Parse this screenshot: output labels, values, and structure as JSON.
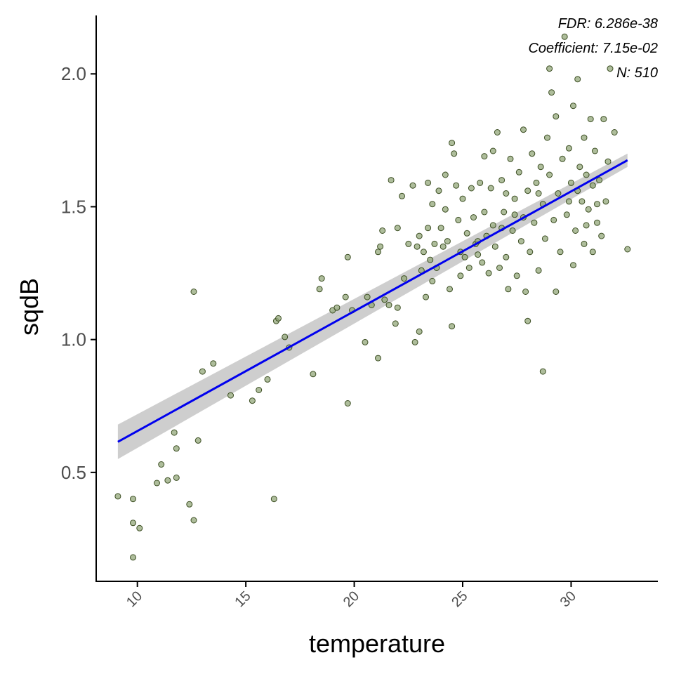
{
  "chart_data": {
    "type": "scatter",
    "title": "",
    "xlabel": "temperature",
    "ylabel": "sqdB",
    "xlim": [
      8.1,
      34.0
    ],
    "ylim": [
      0.09,
      2.22
    ],
    "xticks": [
      10,
      15,
      20,
      25,
      30
    ],
    "xtick_labels": [
      "10",
      "15",
      "20",
      "25",
      "30"
    ],
    "yticks": [
      0.5,
      1.0,
      1.5,
      2.0
    ],
    "ytick_labels": [
      "0.5",
      "1.0",
      "1.5",
      "2.0"
    ],
    "grid": false,
    "legend": "none",
    "annotations": [
      "FDR: 6.286e-38",
      "Coefficient: 7.15e-02",
      "N: 510"
    ],
    "colors": {
      "point_fill": "#93a77a",
      "point_stroke": "#3d4f24",
      "fit_line": "#0000ee",
      "confidence_band": "#bdbdbd",
      "axis": "#000000"
    },
    "fit": {
      "method": "linear",
      "x": [
        9.1,
        32.6
      ],
      "y": [
        0.615,
        1.675
      ],
      "ci_lower": [
        0.55,
        1.65
      ],
      "ci_upper": [
        0.68,
        1.7
      ]
    },
    "point_count_N": 510,
    "points": [
      [
        9.1,
        0.41
      ],
      [
        9.8,
        0.4
      ],
      [
        9.8,
        0.31
      ],
      [
        9.8,
        0.18
      ],
      [
        10.1,
        0.29
      ],
      [
        10.9,
        0.46
      ],
      [
        11.1,
        0.53
      ],
      [
        11.4,
        0.47
      ],
      [
        11.7,
        0.65
      ],
      [
        11.8,
        0.59
      ],
      [
        11.8,
        0.48
      ],
      [
        12.4,
        0.38
      ],
      [
        12.6,
        0.32
      ],
      [
        12.6,
        1.18
      ],
      [
        12.8,
        0.62
      ],
      [
        13.0,
        0.88
      ],
      [
        13.5,
        0.91
      ],
      [
        14.3,
        0.79
      ],
      [
        15.3,
        0.77
      ],
      [
        15.6,
        0.81
      ],
      [
        16.0,
        0.85
      ],
      [
        16.3,
        0.4
      ],
      [
        16.4,
        1.07
      ],
      [
        16.5,
        1.08
      ],
      [
        16.8,
        1.01
      ],
      [
        17.0,
        0.97
      ],
      [
        18.1,
        0.87
      ],
      [
        18.4,
        1.19
      ],
      [
        18.5,
        1.23
      ],
      [
        19.0,
        1.11
      ],
      [
        19.2,
        1.12
      ],
      [
        19.6,
        1.16
      ],
      [
        19.7,
        1.31
      ],
      [
        19.7,
        0.76
      ],
      [
        19.9,
        1.11
      ],
      [
        20.5,
        0.99
      ],
      [
        20.6,
        1.16
      ],
      [
        20.8,
        1.13
      ],
      [
        21.1,
        1.33
      ],
      [
        21.1,
        0.93
      ],
      [
        21.2,
        1.35
      ],
      [
        21.3,
        1.41
      ],
      [
        21.4,
        1.15
      ],
      [
        21.6,
        1.13
      ],
      [
        21.7,
        1.6
      ],
      [
        21.9,
        1.06
      ],
      [
        22.0,
        1.12
      ],
      [
        22.0,
        1.42
      ],
      [
        22.2,
        1.54
      ],
      [
        22.5,
        1.36
      ],
      [
        22.7,
        1.58
      ],
      [
        22.8,
        0.99
      ],
      [
        22.9,
        1.35
      ],
      [
        23.0,
        1.03
      ],
      [
        23.0,
        1.39
      ],
      [
        23.1,
        1.26
      ],
      [
        23.2,
        1.33
      ],
      [
        23.3,
        1.16
      ],
      [
        23.4,
        1.59
      ],
      [
        23.4,
        1.42
      ],
      [
        23.5,
        1.3
      ],
      [
        23.6,
        1.51
      ],
      [
        23.7,
        1.36
      ],
      [
        23.8,
        1.27
      ],
      [
        23.9,
        1.56
      ],
      [
        24.0,
        1.42
      ],
      [
        24.1,
        1.35
      ],
      [
        24.2,
        1.49
      ],
      [
        24.2,
        1.62
      ],
      [
        24.3,
        1.37
      ],
      [
        24.4,
        1.19
      ],
      [
        24.5,
        1.05
      ],
      [
        24.5,
        1.74
      ],
      [
        24.6,
        1.7
      ],
      [
        24.7,
        1.58
      ],
      [
        24.8,
        1.45
      ],
      [
        24.9,
        1.33
      ],
      [
        25.0,
        1.53
      ],
      [
        25.1,
        1.31
      ],
      [
        25.2,
        1.4
      ],
      [
        25.3,
        1.27
      ],
      [
        25.4,
        1.57
      ],
      [
        25.5,
        1.46
      ],
      [
        25.6,
        1.36
      ],
      [
        25.7,
        1.32
      ],
      [
        25.8,
        1.59
      ],
      [
        25.9,
        1.29
      ],
      [
        26.0,
        1.48
      ],
      [
        26.0,
        1.69
      ],
      [
        26.1,
        1.39
      ],
      [
        26.2,
        1.25
      ],
      [
        26.3,
        1.57
      ],
      [
        26.4,
        1.71
      ],
      [
        26.4,
        1.43
      ],
      [
        26.5,
        1.35
      ],
      [
        26.6,
        1.78
      ],
      [
        26.7,
        1.27
      ],
      [
        26.8,
        1.6
      ],
      [
        26.9,
        1.48
      ],
      [
        27.0,
        1.31
      ],
      [
        27.0,
        1.55
      ],
      [
        27.1,
        1.19
      ],
      [
        27.2,
        1.68
      ],
      [
        27.3,
        1.41
      ],
      [
        27.4,
        1.53
      ],
      [
        27.5,
        1.24
      ],
      [
        27.6,
        1.63
      ],
      [
        27.7,
        1.37
      ],
      [
        27.8,
        1.79
      ],
      [
        27.8,
        1.46
      ],
      [
        27.9,
        1.18
      ],
      [
        28.0,
        1.56
      ],
      [
        28.0,
        1.07
      ],
      [
        28.1,
        1.33
      ],
      [
        28.2,
        1.7
      ],
      [
        28.3,
        1.44
      ],
      [
        28.4,
        1.59
      ],
      [
        28.5,
        1.26
      ],
      [
        28.6,
        1.65
      ],
      [
        28.7,
        1.51
      ],
      [
        28.7,
        0.88
      ],
      [
        28.8,
        1.38
      ],
      [
        28.9,
        1.76
      ],
      [
        29.0,
        1.62
      ],
      [
        29.0,
        2.02
      ],
      [
        29.1,
        1.93
      ],
      [
        29.2,
        1.45
      ],
      [
        29.3,
        1.18
      ],
      [
        29.3,
        1.84
      ],
      [
        29.4,
        1.55
      ],
      [
        29.5,
        1.33
      ],
      [
        29.6,
        1.68
      ],
      [
        29.7,
        2.14
      ],
      [
        29.8,
        1.47
      ],
      [
        29.9,
        1.72
      ],
      [
        30.0,
        1.59
      ],
      [
        30.1,
        1.28
      ],
      [
        30.1,
        1.88
      ],
      [
        30.2,
        1.41
      ],
      [
        30.3,
        1.98
      ],
      [
        30.4,
        1.65
      ],
      [
        30.5,
        1.52
      ],
      [
        30.6,
        1.36
      ],
      [
        30.6,
        1.76
      ],
      [
        30.7,
        1.62
      ],
      [
        30.8,
        1.49
      ],
      [
        30.9,
        1.83
      ],
      [
        31.0,
        1.33
      ],
      [
        31.0,
        1.58
      ],
      [
        31.1,
        1.71
      ],
      [
        31.2,
        1.44
      ],
      [
        31.3,
        1.6
      ],
      [
        31.4,
        1.39
      ],
      [
        31.5,
        1.83
      ],
      [
        31.6,
        1.52
      ],
      [
        31.7,
        1.67
      ],
      [
        31.8,
        2.02
      ],
      [
        32.0,
        1.78
      ],
      [
        32.6,
        1.34
      ],
      [
        22.3,
        1.23
      ],
      [
        23.6,
        1.22
      ],
      [
        24.9,
        1.24
      ],
      [
        25.7,
        1.37
      ],
      [
        26.8,
        1.42
      ],
      [
        27.4,
        1.47
      ],
      [
        28.5,
        1.55
      ],
      [
        29.9,
        1.52
      ],
      [
        30.3,
        1.56
      ],
      [
        30.7,
        1.43
      ],
      [
        31.2,
        1.51
      ]
    ]
  }
}
